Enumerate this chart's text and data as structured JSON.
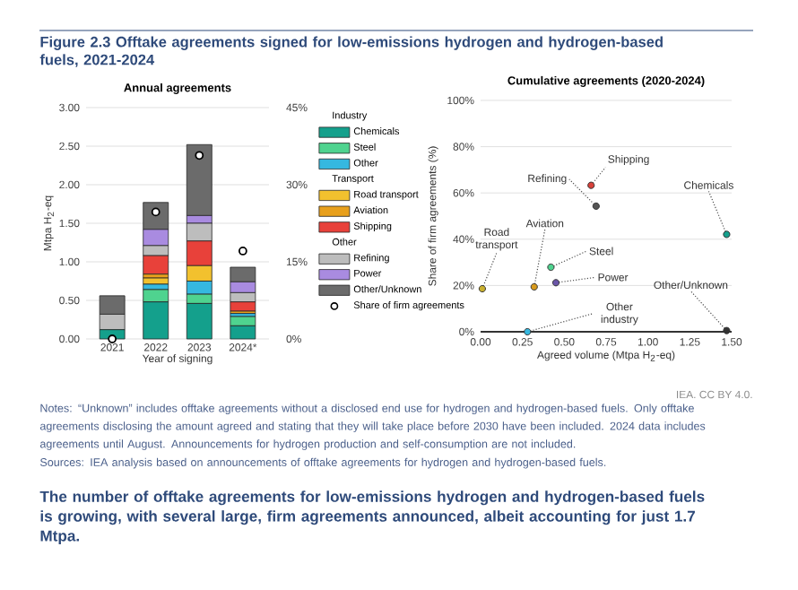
{
  "chart_data": [
    {
      "type": "bar",
      "title": "Annual agreements",
      "xlabel": "Year of signing",
      "ylabel": "Mtpa H$_{2}$-eq",
      "categories": [
        "2021",
        "2022",
        "2023",
        "2024*"
      ],
      "series": [
        {
          "name": "Chemicals",
          "color": "#14a08c",
          "values": [
            0.12,
            0.48,
            0.46,
            0.17
          ]
        },
        {
          "name": "Steel",
          "color": "#4fd38f",
          "values": [
            0,
            0.16,
            0.12,
            0.12
          ]
        },
        {
          "name": "Other",
          "color": "#35b8e0",
          "values": [
            0,
            0.07,
            0.17,
            0.04
          ]
        },
        {
          "name": "Road transport",
          "color": "#f2c12e",
          "values": [
            0,
            0.08,
            0.2,
            0
          ]
        },
        {
          "name": "Aviation",
          "color": "#e8a01c",
          "values": [
            0,
            0.05,
            0,
            0.03
          ]
        },
        {
          "name": "Shipping",
          "color": "#e8413a",
          "values": [
            0,
            0.24,
            0.32,
            0.12
          ]
        },
        {
          "name": "Refining",
          "color": "#bdbdbd",
          "values": [
            0.2,
            0.13,
            0.23,
            0.12
          ]
        },
        {
          "name": "Power",
          "color": "#a98be0",
          "values": [
            0,
            0.21,
            0.1,
            0.14
          ]
        },
        {
          "name": "Other/Unknown",
          "color": "#6b6b6b",
          "values": [
            0.24,
            0.35,
            0.92,
            0.19
          ]
        },
        {
          "name": "Share of firm agreements",
          "type": "scatter",
          "axis": "y2",
          "color": "#ffffff",
          "values": [
            0,
            24.7,
            35.7,
            17.1
          ]
        }
      ],
      "stacked": true,
      "marker": "circle",
      "ylim": [
        0,
        3
      ],
      "yticks": [
        {
          "value": 0,
          "label": "0.00"
        },
        {
          "value": 0.5,
          "label": "0.50"
        },
        {
          "value": 1,
          "label": "1.00"
        },
        {
          "value": 1.5,
          "label": "1.50"
        },
        {
          "value": 2,
          "label": "2.00"
        },
        {
          "value": 2.5,
          "label": "2.50"
        },
        {
          "value": 3,
          "label": "3.00"
        }
      ],
      "y2lim": [
        0,
        45
      ],
      "y2ticks": [
        {
          "value": 0,
          "label": "0%"
        },
        {
          "value": 15,
          "label": "15%"
        },
        {
          "value": 30,
          "label": "30%"
        },
        {
          "value": 45,
          "label": "45%"
        }
      ],
      "grid": "y",
      "legend": "right",
      "annotations": [
        "Figure 2.3 Offtake agreements signed for low-emissions hydrogen and hydrogen-based fuels, 2021-2024",
        "Industry",
        "Transport",
        "Other",
        "IEA. CC BY 4.0.",
        "Notes: “Unknown” includes offtake agreements without a disclosed end use for hydrogen and hydrogen-based fuels. Only offtake agreements disclosing the amount agreed and stating that they will take place before 2030 have been included. 2024 data includes agreements until August. Announcements for hydrogen production and self-consumption are not included.",
        "Sources: IEA analysis based on announcements of offtake agreements for hydrogen and hydrogen-based fuels.",
        "The number of offtake agreements for low-emissions hydrogen and hydrogen-based fuels is growing, with several large, firm agreements announced, albeit accounting for just 1.7 Mtpa."
      ]
    },
    {
      "type": "scatter",
      "title": "Cumulative agreements (2020-2024)",
      "xlabel": "Agreed volume (Mtpa H$_{2}$-eq)",
      "ylabel": "Share of firm agreements (%)",
      "series": [
        {
          "x": [
            1.47,
            0.42,
            0.28,
            0.01,
            0.32,
            0.66,
            0.69,
            0.45,
            1.47
          ],
          "values": [
            42.1,
            27.9,
            0,
            18.6,
            19.4,
            63.3,
            54.3,
            21.2,
            0.5
          ],
          "colors": [
            "#14a08c",
            "#4fd38f",
            "#35b8e0",
            "#c9b02e",
            "#d89a1c",
            "#d8413a",
            "#555555",
            "#6a55a8",
            "#333333"
          ]
        }
      ],
      "xlim": [
        0,
        1.5
      ],
      "xticks": [
        {
          "value": 0,
          "label": "0.00"
        },
        {
          "value": 0.25,
          "label": "0.25"
        },
        {
          "value": 0.5,
          "label": "0.50"
        },
        {
          "value": 0.75,
          "label": "0.75"
        },
        {
          "value": 1,
          "label": "1.00"
        },
        {
          "value": 1.25,
          "label": "1.25"
        },
        {
          "value": 1.5,
          "label": "1.50"
        }
      ],
      "ylim": [
        0,
        100
      ],
      "yticks": [
        {
          "value": 0,
          "label": "0%"
        },
        {
          "value": 20,
          "label": "20%"
        },
        {
          "value": 40,
          "label": "40%"
        },
        {
          "value": 60,
          "label": "60%"
        },
        {
          "value": 80,
          "label": "80%"
        },
        {
          "value": 100,
          "label": "100%"
        }
      ],
      "grid": "y",
      "marker": "circle",
      "annotations": [
        {
          "text": "Shipping",
          "x": 0.66,
          "y": 63.3
        },
        {
          "text": "Refining",
          "x": 0.69,
          "y": 54.3
        },
        {
          "text": "Chemicals",
          "x": 1.47,
          "y": 42.1
        },
        {
          "text": "Road transport",
          "x": 0.01,
          "y": 18.6
        },
        {
          "text": "Aviation",
          "x": 0.32,
          "y": 19.4
        },
        {
          "text": "Steel",
          "x": 0.42,
          "y": 27.9
        },
        {
          "text": "Power",
          "x": 0.45,
          "y": 21.2
        },
        {
          "text": "Other/Unknown",
          "x": 1.47,
          "y": 0.5
        },
        {
          "text": "Other industry",
          "x": 0.28,
          "y": 0
        }
      ]
    }
  ]
}
